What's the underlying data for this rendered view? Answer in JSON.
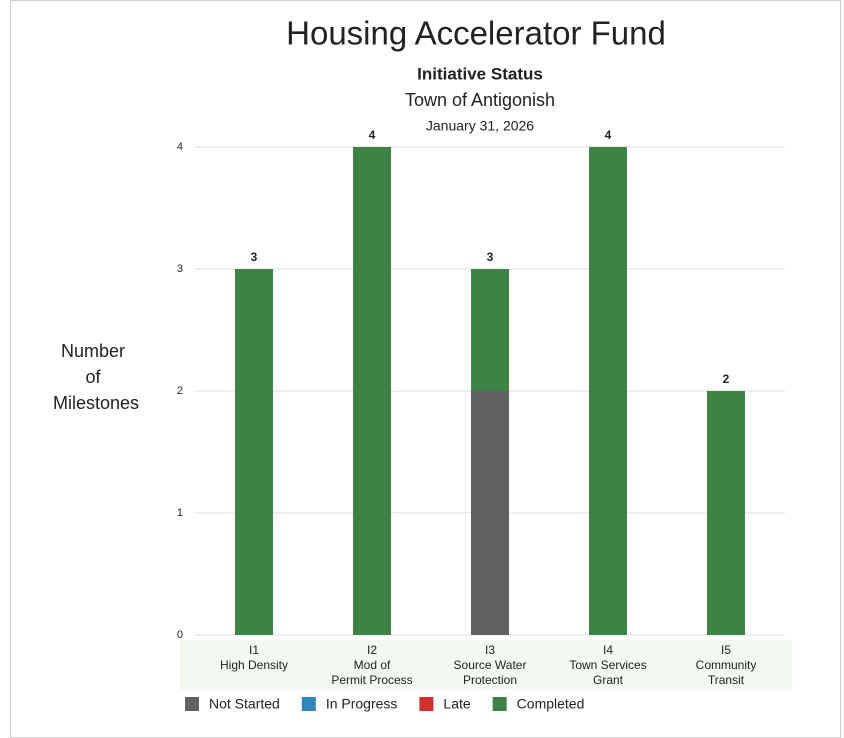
{
  "chart_data": {
    "type": "stacked_bar",
    "title": "Housing Accelerator Fund",
    "subtitle": "Initiative Status",
    "location": "Town of Antigonish",
    "date": "January 31, 2026",
    "y_label": [
      "Number",
      "of",
      "Milestones"
    ],
    "categories": [
      [
        "I1",
        "High Density"
      ],
      [
        "I2",
        "Mod of",
        "Permit Process"
      ],
      [
        "I3",
        "Source Water",
        "Protection"
      ],
      [
        "I4",
        "Town Services",
        "Grant"
      ],
      [
        "I5",
        "Community",
        "Transit"
      ]
    ],
    "series": [
      {
        "name": "Not Started",
        "color": "#616161",
        "values": [
          0,
          0,
          2,
          0,
          0
        ]
      },
      {
        "name": "In Progress",
        "color": "#2e86c1",
        "values": [
          0,
          0,
          0,
          0,
          0
        ]
      },
      {
        "name": "Late",
        "color": "#d32f2f",
        "values": [
          0,
          0,
          0,
          0,
          0
        ]
      },
      {
        "name": "Completed",
        "color": "#3f8343",
        "values": [
          3,
          4,
          1,
          4,
          2
        ]
      }
    ],
    "totals": [
      3,
      4,
      3,
      4,
      2
    ],
    "ylim": [
      0,
      4
    ],
    "yticks": [
      0,
      1,
      2,
      3,
      4
    ],
    "grid": true,
    "legend": "bottom"
  }
}
